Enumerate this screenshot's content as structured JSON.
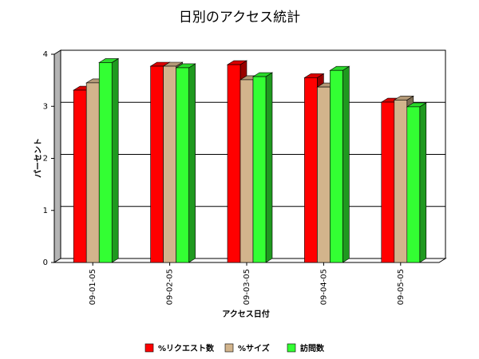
{
  "chart_data": {
    "type": "bar3d",
    "title": "日別のアクセス統計",
    "y_label": "パーセント",
    "x_label": "アクセス日付",
    "categories": [
      "09-01-05",
      "09-02-05",
      "09-03-05",
      "09-04-05",
      "09-05-05"
    ],
    "series": [
      {
        "name": "%リクエスト数",
        "color": "#ff0000",
        "values": [
          3.31,
          3.77,
          3.8,
          3.55,
          3.08
        ]
      },
      {
        "name": "%サイズ",
        "color": "#d2b48c",
        "values": [
          3.45,
          3.77,
          3.51,
          3.37,
          3.12
        ]
      },
      {
        "name": "訪問数",
        "color": "#33ff33",
        "values": [
          3.84,
          3.74,
          3.57,
          3.69,
          2.99
        ]
      }
    ],
    "ylim": [
      0,
      4
    ],
    "yticks": [
      0,
      1,
      2,
      3,
      4
    ],
    "grid": true
  }
}
